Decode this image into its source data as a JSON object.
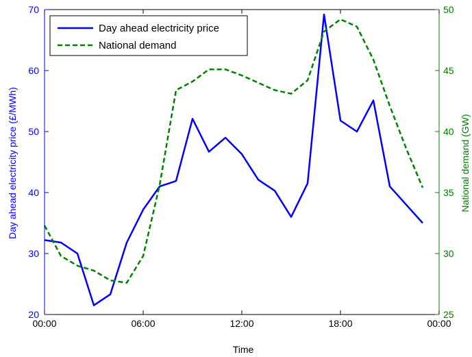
{
  "chart_data": {
    "type": "line",
    "xlabel": "Time",
    "ylabel_left": "Day ahead electricity price (£/MWh)",
    "ylabel_right": "National demand (GW)",
    "x_ticks": [
      "00:00",
      "06:00",
      "12:00",
      "18:00",
      "00:00"
    ],
    "x_hours": [
      0,
      1,
      2,
      3,
      4,
      5,
      6,
      7,
      8,
      9,
      10,
      11,
      12,
      13,
      14,
      15,
      16,
      17,
      18,
      19,
      20,
      21,
      22,
      23
    ],
    "xlim_hours": [
      0,
      24
    ],
    "ylim_left": [
      20,
      70
    ],
    "yticks_left": [
      20,
      30,
      40,
      50,
      60,
      70
    ],
    "ylim_right": [
      25,
      50
    ],
    "yticks_right": [
      25,
      30,
      35,
      40,
      45,
      50
    ],
    "legend_position": "top-left",
    "series": [
      {
        "name": "Day ahead electricity price",
        "axis": "left",
        "color": "#0000ff",
        "style": "solid",
        "values": [
          32.2,
          31.8,
          30.0,
          21.5,
          23.3,
          31.8,
          37.2,
          41.0,
          41.9,
          52.1,
          46.7,
          49.0,
          46.3,
          42.1,
          40.3,
          36.0,
          41.5,
          69.2,
          51.8,
          50.0,
          55.1,
          41.0,
          38.0,
          35.0
        ]
      },
      {
        "name": "National demand",
        "axis": "right",
        "color": "#008000",
        "style": "dashed",
        "values": [
          32.3,
          29.8,
          29.0,
          28.6,
          27.8,
          27.6,
          29.8,
          35.6,
          43.4,
          44.1,
          45.1,
          45.1,
          44.6,
          44.0,
          43.4,
          43.1,
          44.2,
          48.2,
          49.2,
          48.6,
          45.9,
          42.1,
          38.6,
          35.4
        ]
      }
    ]
  }
}
